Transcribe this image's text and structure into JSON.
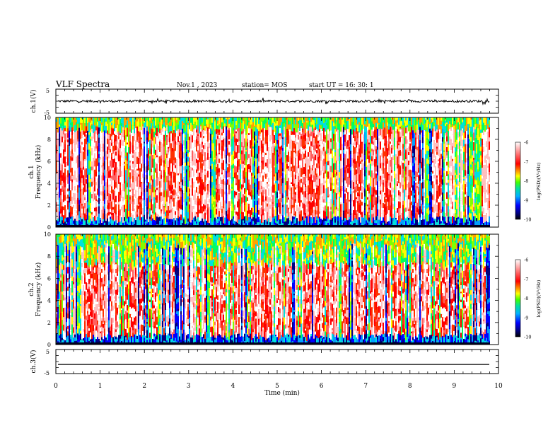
{
  "header": {
    "title": "VLF Spectra",
    "date": "Nov.1 , 2023",
    "station": "station= MOS",
    "start_ut": "start UT = 16: 30: 1"
  },
  "chart_data": [
    {
      "type": "line",
      "panel": "ch1-waveform",
      "ylabel": "ch.1(V)",
      "ylim": [
        -5,
        5
      ],
      "yticks": [
        "5",
        "-5"
      ],
      "xlim": [
        0,
        10
      ],
      "trace_level": 0
    },
    {
      "type": "heatmap",
      "panel": "ch1-spectrogram",
      "ylabel": "ch.1",
      "ylabel2": "Frequency (kHz)",
      "ylim": [
        0,
        10
      ],
      "yticks": [
        "0",
        "2",
        "4",
        "6",
        "8",
        "10"
      ],
      "xlim": [
        0,
        10
      ],
      "data_end_min": 9.8,
      "colorbar": {
        "label": "log(PSD)(V²/Hz)",
        "range": [
          -10,
          -6
        ],
        "ticks": [
          "-6",
          "-7",
          "-8",
          "-9",
          "-10"
        ]
      }
    },
    {
      "type": "heatmap",
      "panel": "ch2-spectrogram",
      "ylabel": "ch.2",
      "ylabel2": "Frequency (kHz)",
      "ylim": [
        0,
        10
      ],
      "yticks": [
        "0",
        "2",
        "4",
        "6",
        "8",
        "10"
      ],
      "xlim": [
        0,
        10
      ],
      "data_end_min": 9.8,
      "colorbar": {
        "label": "log(PSD)(V²/Hz)",
        "range": [
          -10,
          -6
        ],
        "ticks": [
          "-6",
          "-7",
          "-8",
          "-9",
          "-10"
        ]
      }
    },
    {
      "type": "line",
      "panel": "ch3-waveform",
      "ylabel": "ch.3(V)",
      "ylim": [
        -5,
        5
      ],
      "yticks": [
        "5",
        "-5"
      ],
      "xlim": [
        0,
        10
      ],
      "trace_level": -1.2
    }
  ],
  "xaxis": {
    "label": "Time (min)",
    "ticks": [
      "0",
      "1",
      "2",
      "3",
      "4",
      "5",
      "6",
      "7",
      "8",
      "9",
      "10"
    ]
  },
  "colors": {
    "palette": [
      "#000080",
      "#0000ff",
      "#00a0ff",
      "#00e0e0",
      "#00ff60",
      "#80ff00",
      "#ffff00",
      "#ffa000",
      "#ff3000",
      "#ff0000",
      "#ff6060",
      "#ffc0c0",
      "#ffffff"
    ]
  }
}
